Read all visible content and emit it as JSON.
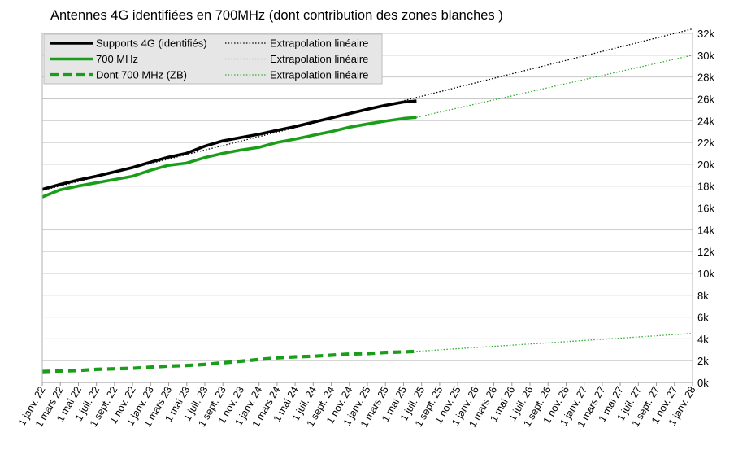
{
  "chart_data": {
    "type": "line",
    "title": "Antennes 4G identifiées en 700MHz (dont contribution des zones blanches )",
    "xlabel": "",
    "ylabel": "",
    "ylim": [
      0,
      32000
    ],
    "y_axis_position": "right",
    "y_ticks": [
      "0k",
      "2k",
      "4k",
      "6k",
      "8k",
      "10k",
      "12k",
      "14k",
      "16k",
      "18k",
      "20k",
      "22k",
      "24k",
      "26k",
      "28k",
      "30k",
      "32k"
    ],
    "x_ticks": [
      "1 janv. 22",
      "1 mars 22",
      "1 mai 22",
      "1 juil. 22",
      "1 sept. 22",
      "1 nov. 22",
      "1 janv. 23",
      "1 mars 23",
      "1 mai 23",
      "1 juil. 23",
      "1 sept. 23",
      "1 nov. 23",
      "1 janv. 24",
      "1 mars 24",
      "1 mai 24",
      "1 juil. 24",
      "1 sept. 24",
      "1 nov. 24",
      "1 janv. 25",
      "1 mars 25",
      "1 mai 25",
      "1 juil. 25",
      "1 sept. 25",
      "1 nov. 25",
      "1 janv. 26",
      "1 mars 26",
      "1 mai 26",
      "1 juil. 26",
      "1 sept. 26",
      "1 nov. 26",
      "1 janv. 27",
      "1 mars 27",
      "1 mai 27",
      "1 juil. 27",
      "1 sept. 27",
      "1 nov. 27",
      "1 janv. 28"
    ],
    "grid": "horizontal",
    "legend_position": "top-left",
    "series": [
      {
        "name": "Supports 4G (identifiés)",
        "color": "#000000",
        "style": "solid",
        "x": [
          "2022-01-01",
          "2022-03-01",
          "2022-05-01",
          "2022-07-01",
          "2022-09-01",
          "2022-11-01",
          "2023-01-01",
          "2023-03-01",
          "2023-05-01",
          "2023-07-01",
          "2023-09-01",
          "2023-11-01",
          "2024-01-01",
          "2024-03-01",
          "2024-05-01",
          "2024-07-01",
          "2024-09-01",
          "2024-11-01",
          "2025-01-01",
          "2025-03-01",
          "2025-05-01",
          "2025-06-15"
        ],
        "values": [
          17700,
          18150,
          18550,
          18900,
          19300,
          19700,
          20200,
          20650,
          21000,
          21650,
          22150,
          22450,
          22750,
          23100,
          23450,
          23850,
          24250,
          24650,
          25050,
          25400,
          25700,
          25800
        ]
      },
      {
        "name": "Extrapolation linéaire",
        "color": "#000000",
        "style": "dotted",
        "x": [
          "2022-01-01",
          "2028-01-01"
        ],
        "values": [
          17600,
          32400
        ]
      },
      {
        "name": "700 MHz",
        "color": "#1a9e1a",
        "style": "solid",
        "x": [
          "2022-01-01",
          "2022-03-01",
          "2022-05-01",
          "2022-07-01",
          "2022-09-01",
          "2022-11-01",
          "2023-01-01",
          "2023-03-01",
          "2023-05-01",
          "2023-07-01",
          "2023-09-01",
          "2023-11-01",
          "2024-01-01",
          "2024-03-01",
          "2024-05-01",
          "2024-07-01",
          "2024-09-01",
          "2024-11-01",
          "2025-01-01",
          "2025-03-01",
          "2025-05-01",
          "2025-06-15"
        ],
        "values": [
          17000,
          17650,
          18000,
          18300,
          18600,
          18900,
          19450,
          19900,
          20100,
          20600,
          21000,
          21300,
          21550,
          22000,
          22300,
          22650,
          23000,
          23400,
          23700,
          23950,
          24200,
          24300
        ]
      },
      {
        "name": "Extrapolation linéaire",
        "color": "#33aa33",
        "style": "dotted",
        "x": [
          "2025-06-15",
          "2028-01-01"
        ],
        "values": [
          24300,
          30000
        ]
      },
      {
        "name": "Dont 700 MHz (ZB)",
        "color": "#1a9e1a",
        "style": "dashed",
        "x": [
          "2022-01-01",
          "2022-03-01",
          "2022-05-01",
          "2022-07-01",
          "2022-09-01",
          "2022-11-01",
          "2023-01-01",
          "2023-03-01",
          "2023-05-01",
          "2023-07-01",
          "2023-09-01",
          "2023-11-01",
          "2024-01-01",
          "2024-03-01",
          "2024-05-01",
          "2024-07-01",
          "2024-09-01",
          "2024-11-01",
          "2025-01-01",
          "2025-03-01",
          "2025-05-01",
          "2025-06-15"
        ],
        "values": [
          1000,
          1050,
          1100,
          1200,
          1250,
          1300,
          1400,
          1500,
          1550,
          1650,
          1800,
          1950,
          2100,
          2250,
          2350,
          2400,
          2500,
          2600,
          2650,
          2750,
          2800,
          2850
        ]
      },
      {
        "name": "Extrapolation linéaire",
        "color": "#33aa33",
        "style": "dotted",
        "x": [
          "2025-06-15",
          "2028-01-01"
        ],
        "values": [
          2850,
          4500
        ]
      }
    ]
  }
}
